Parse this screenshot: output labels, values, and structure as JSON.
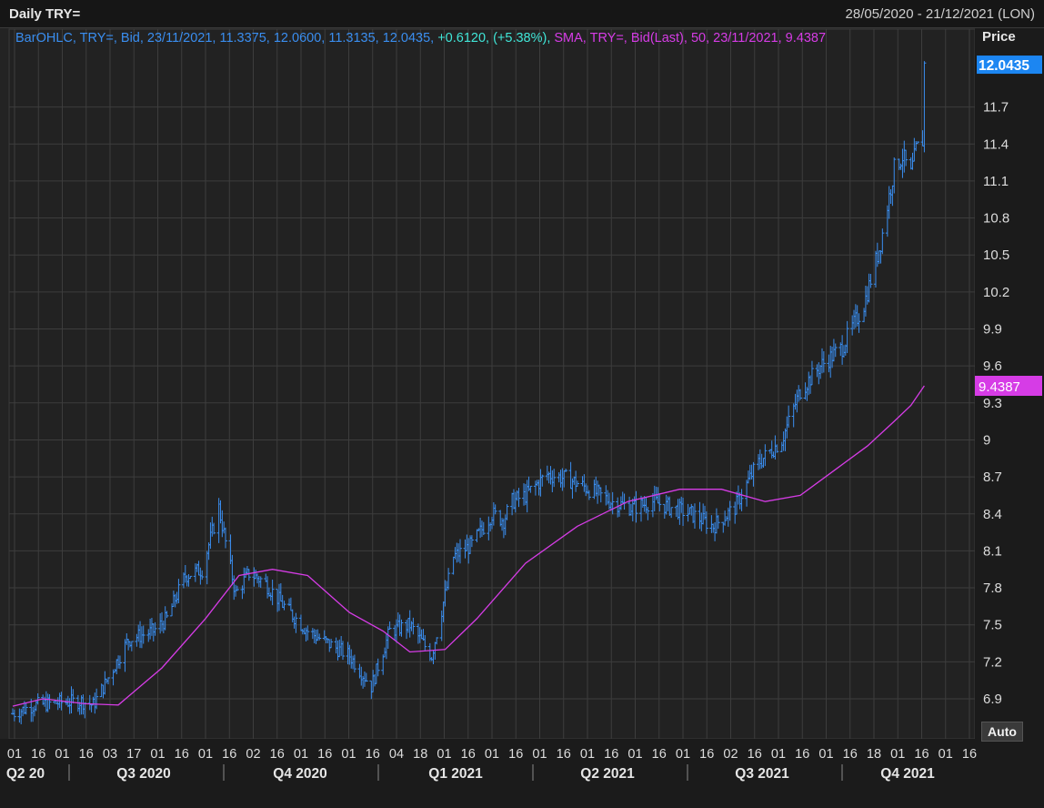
{
  "header": {
    "title": "Daily TRY=",
    "date_range": "28/05/2020 - 21/12/2021 (LON)"
  },
  "legend": {
    "ohlc_text": "BarOHLC, TRY=, Bid, 23/11/2021, 11.3375, 12.0600, 11.3135, 12.0435,",
    "change_text": " +0.6120, (+5.38%),",
    "sma_text": " SMA, TRY=, Bid(Last),  50, 23/11/2021, 9.4387"
  },
  "price_axis": {
    "header": "Price",
    "last_tag": "12.0435",
    "sma_tag": "9.4387"
  },
  "auto_button": "Auto",
  "colors": {
    "background": "#232323",
    "grid": "#3d3d3d",
    "bars": "#3a8ef0",
    "sma": "#d63ce6",
    "last_tag": "#1c86f2",
    "sma_tag": "#d63ce6"
  },
  "chart_data": {
    "type": "line",
    "title": "Daily TRY=",
    "xlabel": "",
    "ylabel": "Price",
    "ylim": [
      6.6,
      12.3
    ],
    "grid": true,
    "y_ticks": [
      "6.9",
      "7.2",
      "7.5",
      "7.8",
      "8.1",
      "8.4",
      "8.7",
      "9",
      "9.3",
      "9.6",
      "9.9",
      "10.2",
      "10.5",
      "10.8",
      "11.1",
      "11.4",
      "11.7"
    ],
    "x_tick_labels": [
      "01",
      "16",
      "01",
      "16",
      "03",
      "17",
      "01",
      "16",
      "01",
      "16",
      "02",
      "16",
      "01",
      "16",
      "01",
      "16",
      "04",
      "18",
      "01",
      "16",
      "01",
      "16",
      "01",
      "16",
      "01",
      "16",
      "01",
      "16",
      "01",
      "16",
      "02",
      "16",
      "01",
      "16",
      "01",
      "16",
      "18",
      "01",
      "16",
      "01",
      "16"
    ],
    "period_labels": [
      "Q2 20",
      "Q3 2020",
      "Q4 2020",
      "Q1 2021",
      "Q2 2021",
      "Q3 2021",
      "Q4 2021"
    ],
    "series": [
      {
        "name": "BarOHLC, TRY=, Bid",
        "style": "ohlc",
        "x": [
          "2020-05-28",
          "2020-06-10",
          "2020-06-25",
          "2020-07-08",
          "2020-07-15",
          "2020-07-22",
          "2020-08-05",
          "2020-08-20",
          "2020-08-28",
          "2020-09-08",
          "2020-09-18",
          "2020-09-28",
          "2020-10-08",
          "2020-10-16",
          "2020-10-25",
          "2020-11-06",
          "2020-11-20",
          "2020-12-02",
          "2020-12-15",
          "2020-12-28",
          "2021-01-08",
          "2021-01-20",
          "2021-02-02",
          "2021-02-15",
          "2021-02-26",
          "2021-03-10",
          "2021-03-17",
          "2021-03-22",
          "2021-03-30",
          "2021-04-12",
          "2021-04-25",
          "2021-05-07",
          "2021-05-20",
          "2021-06-02",
          "2021-06-14",
          "2021-06-25",
          "2021-07-07",
          "2021-07-20",
          "2021-08-02",
          "2021-08-15",
          "2021-08-30",
          "2021-09-10",
          "2021-09-22",
          "2021-10-05",
          "2021-10-18",
          "2021-10-28",
          "2021-11-05",
          "2021-11-10",
          "2021-11-15",
          "2021-11-18",
          "2021-11-22",
          "2021-11-23"
        ],
        "close": [
          6.78,
          6.85,
          6.87,
          6.88,
          6.85,
          7.02,
          7.38,
          7.45,
          7.55,
          7.9,
          7.95,
          8.45,
          7.75,
          7.92,
          7.85,
          7.65,
          7.45,
          7.35,
          7.25,
          7.0,
          7.45,
          7.5,
          7.25,
          8.05,
          8.15,
          8.4,
          8.35,
          8.5,
          8.55,
          8.72,
          8.68,
          8.6,
          8.5,
          8.45,
          8.5,
          8.45,
          8.4,
          8.3,
          8.45,
          8.8,
          9.0,
          9.4,
          9.6,
          9.75,
          10.1,
          10.6,
          11.2,
          11.3,
          11.15,
          11.35,
          11.43,
          12.0435
        ]
      },
      {
        "name": "SMA, TRY=, Bid(Last), 50",
        "style": "line",
        "x": [
          "2020-05-28",
          "2020-06-15",
          "2020-07-10",
          "2020-07-30",
          "2020-08-25",
          "2020-09-20",
          "2020-10-10",
          "2020-10-30",
          "2020-11-20",
          "2020-12-15",
          "2021-01-04",
          "2021-01-20",
          "2021-02-10",
          "2021-03-01",
          "2021-03-30",
          "2021-04-30",
          "2021-05-30",
          "2021-06-30",
          "2021-07-25",
          "2021-08-20",
          "2021-09-10",
          "2021-09-30",
          "2021-10-20",
          "2021-11-05",
          "2021-11-15",
          "2021-11-23"
        ],
        "values": [
          6.84,
          6.9,
          6.86,
          6.85,
          7.15,
          7.55,
          7.9,
          7.95,
          7.9,
          7.6,
          7.45,
          7.28,
          7.3,
          7.55,
          8.0,
          8.3,
          8.5,
          8.6,
          8.6,
          8.5,
          8.55,
          8.75,
          8.95,
          9.15,
          9.28,
          9.4387
        ]
      }
    ]
  }
}
